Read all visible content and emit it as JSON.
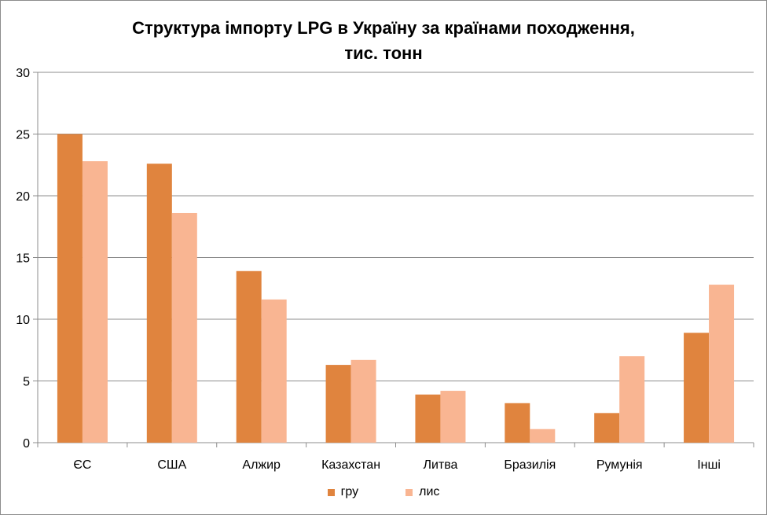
{
  "chart_data": {
    "type": "bar",
    "title": "Структура імпорту LPG в Україну за країнами походження,",
    "subtitle": "тис. тонн",
    "categories": [
      "ЄС",
      "США",
      "Алжир",
      "Казахстан",
      "Литва",
      "Бразилія",
      "Румунія",
      "Інші"
    ],
    "series": [
      {
        "name": "гру",
        "color": "#E0843E",
        "values": [
          25.0,
          22.6,
          13.9,
          6.3,
          3.9,
          3.2,
          2.4,
          8.9
        ]
      },
      {
        "name": "лис",
        "color": "#F9B592",
        "values": [
          22.8,
          18.6,
          11.6,
          6.7,
          4.2,
          1.1,
          7.0,
          12.8
        ]
      }
    ],
    "ylim": [
      0,
      30
    ],
    "yticks": [
      0,
      5,
      10,
      15,
      20,
      25,
      30
    ],
    "grid": true,
    "legend_position": "bottom"
  }
}
